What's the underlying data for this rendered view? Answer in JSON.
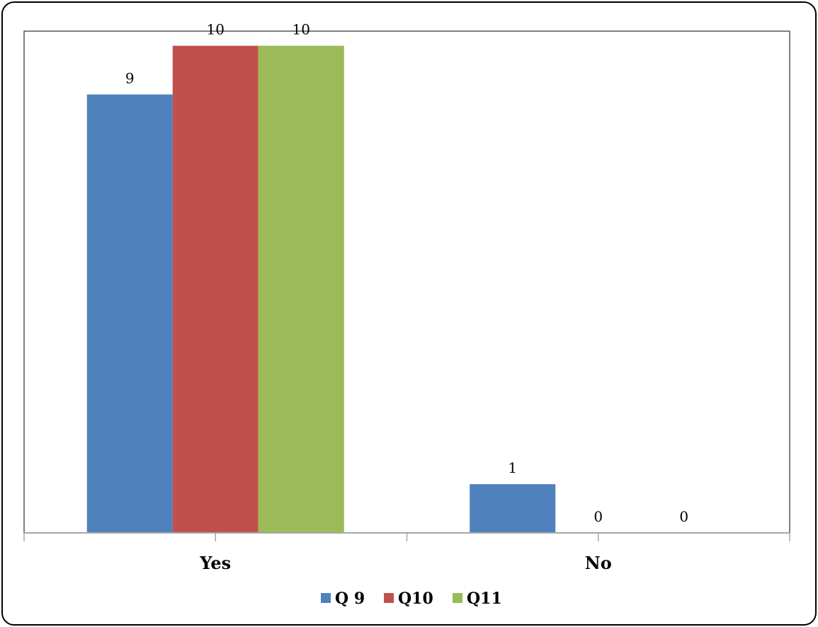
{
  "chart_data": {
    "type": "bar",
    "categories": [
      "Yes",
      "No"
    ],
    "series": [
      {
        "name": "Q 9",
        "values": [
          9,
          1
        ],
        "color": "#4F81BD"
      },
      {
        "name": "Q10",
        "values": [
          10,
          0
        ],
        "color": "#C0504D"
      },
      {
        "name": "Q11",
        "values": [
          10,
          0
        ],
        "color": "#9BBB59"
      }
    ],
    "ylim": [
      0,
      10.3
    ],
    "grid": false,
    "data_labels": true,
    "legend_position": "bottom",
    "axis_color": "#A6A6A6"
  }
}
